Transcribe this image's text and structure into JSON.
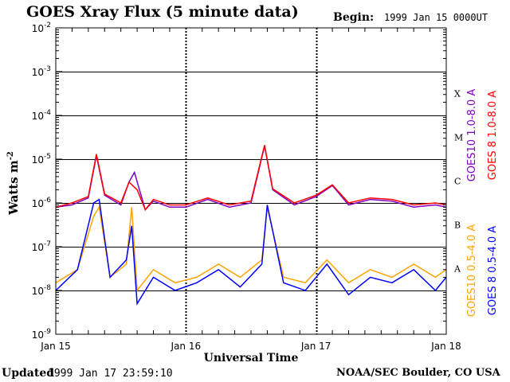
{
  "header": {
    "title": "GOES Xray Flux (5 minute data)",
    "begin_label": "Begin:",
    "begin_value": "1999 Jan 15 0000UT"
  },
  "footer": {
    "updated_label": "Updated",
    "updated_value": "1999 Jan 17 23:59:10",
    "credit": "NOAA/SEC Boulder, CO USA"
  },
  "colors": {
    "goes10_long": "#8000c0",
    "goes8_long": "#ff0000",
    "goes10_short": "#ffa500",
    "goes8_short": "#0000ff"
  },
  "chart_data": {
    "type": "line",
    "title": "GOES Xray Flux (5 minute data)",
    "xlabel": "Universal Time",
    "ylabel": "Watts m",
    "ylabel_superscript": "-2",
    "y_scale": "log",
    "ylim": [
      1e-09,
      0.01
    ],
    "y_ticks": [
      {
        "base": "10",
        "exp": "-2"
      },
      {
        "base": "10",
        "exp": "-3"
      },
      {
        "base": "10",
        "exp": "-4"
      },
      {
        "base": "10",
        "exp": "-5"
      },
      {
        "base": "10",
        "exp": "-6"
      },
      {
        "base": "10",
        "exp": "-7"
      },
      {
        "base": "10",
        "exp": "-8"
      },
      {
        "base": "10",
        "exp": "-9"
      }
    ],
    "x_range": [
      "1999-01-15T00:00",
      "1999-01-18T00:00"
    ],
    "x_ticks": [
      "Jan 15",
      "Jan 16",
      "Jan 17",
      "Jan 18"
    ],
    "flare_classes": [
      "X",
      "M",
      "C",
      "B",
      "A"
    ],
    "grid": {
      "horizontal_at": [
        1e-08,
        1e-07,
        1e-06,
        1e-05,
        0.0001,
        0.001
      ],
      "day_separators": true
    },
    "legend_placement": "right, vertical",
    "series": [
      {
        "name": "GOES10 1.0-8.0 A",
        "x": [
          "1999-01-15T00:00",
          "1999-01-15T03:00",
          "1999-01-15T06:00",
          "1999-01-15T07:30",
          "1999-01-15T09:00",
          "1999-01-15T12:00",
          "1999-01-15T13:30",
          "1999-01-15T14:30",
          "1999-01-15T16:30",
          "1999-01-15T18:00",
          "1999-01-15T21:00",
          "1999-01-16T00:00",
          "1999-01-16T04:00",
          "1999-01-16T08:00",
          "1999-01-16T12:00",
          "1999-01-16T14:30",
          "1999-01-16T16:00",
          "1999-01-16T20:00",
          "1999-01-17T00:00",
          "1999-01-17T03:00",
          "1999-01-17T06:00",
          "1999-01-17T10:00",
          "1999-01-17T14:00",
          "1999-01-17T18:00",
          "1999-01-17T22:00",
          "1999-01-18T00:00"
        ],
        "y": [
          8e-07,
          9e-07,
          1.3e-06,
          1.2e-05,
          1.5e-06,
          9e-07,
          3e-06,
          5e-06,
          7e-07,
          1.1e-06,
          8e-07,
          8e-07,
          1.2e-06,
          8e-07,
          1e-06,
          2e-05,
          2e-06,
          9e-07,
          1.4e-06,
          2.5e-06,
          9e-07,
          1.2e-06,
          1.1e-06,
          8e-07,
          9e-07,
          8e-07
        ]
      },
      {
        "name": "GOES 8 1.0-8.0 A",
        "x": [
          "1999-01-15T00:00",
          "1999-01-15T03:00",
          "1999-01-15T06:00",
          "1999-01-15T07:30",
          "1999-01-15T09:00",
          "1999-01-15T12:00",
          "1999-01-15T13:30",
          "1999-01-15T15:00",
          "1999-01-15T16:30",
          "1999-01-15T18:00",
          "1999-01-15T21:00",
          "1999-01-16T00:00",
          "1999-01-16T04:00",
          "1999-01-16T08:00",
          "1999-01-16T12:00",
          "1999-01-16T14:30",
          "1999-01-16T16:00",
          "1999-01-16T20:00",
          "1999-01-17T00:00",
          "1999-01-17T03:00",
          "1999-01-17T06:00",
          "1999-01-17T10:00",
          "1999-01-17T14:00",
          "1999-01-17T18:00",
          "1999-01-17T22:00",
          "1999-01-18T00:00"
        ],
        "y": [
          8e-07,
          1e-06,
          1.4e-06,
          1.3e-05,
          1.6e-06,
          1e-06,
          3e-06,
          2e-06,
          7e-07,
          1.2e-06,
          9e-07,
          9e-07,
          1.3e-06,
          9e-07,
          1.1e-06,
          2.1e-05,
          2.1e-06,
          1e-06,
          1.5e-06,
          2.6e-06,
          1e-06,
          1.3e-06,
          1.2e-06,
          9e-07,
          1e-06,
          9e-07
        ]
      },
      {
        "name": "GOES10 0.5-4.0 A",
        "x": [
          "1999-01-15T00:00",
          "1999-01-15T04:00",
          "1999-01-15T07:00",
          "1999-01-15T08:00",
          "1999-01-15T10:00",
          "1999-01-15T13:00",
          "1999-01-15T14:00",
          "1999-01-15T15:00",
          "1999-01-15T18:00",
          "1999-01-15T22:00",
          "1999-01-16T02:00",
          "1999-01-16T06:00",
          "1999-01-16T10:00",
          "1999-01-16T14:00",
          "1999-01-16T15:00",
          "1999-01-16T18:00",
          "1999-01-16T22:00",
          "1999-01-17T02:00",
          "1999-01-17T06:00",
          "1999-01-17T10:00",
          "1999-01-17T14:00",
          "1999-01-17T18:00",
          "1999-01-17T22:00",
          "1999-01-18T00:00"
        ],
        "y": [
          1.5e-08,
          3e-08,
          5e-07,
          8e-07,
          2e-08,
          4e-08,
          8e-07,
          1e-08,
          3e-08,
          1.5e-08,
          2e-08,
          4e-08,
          2e-08,
          5e-08,
          8e-07,
          2e-08,
          1.5e-08,
          5e-08,
          1.5e-08,
          3e-08,
          2e-08,
          4e-08,
          2e-08,
          3e-08
        ]
      },
      {
        "name": "GOES 8 0.5-4.0 A",
        "x": [
          "1999-01-15T00:00",
          "1999-01-15T04:00",
          "1999-01-15T07:00",
          "1999-01-15T08:00",
          "1999-01-15T10:00",
          "1999-01-15T13:00",
          "1999-01-15T14:00",
          "1999-01-15T15:00",
          "1999-01-15T18:00",
          "1999-01-15T22:00",
          "1999-01-16T02:00",
          "1999-01-16T06:00",
          "1999-01-16T10:00",
          "1999-01-16T14:00",
          "1999-01-16T15:00",
          "1999-01-16T18:00",
          "1999-01-16T22:00",
          "1999-01-17T02:00",
          "1999-01-17T06:00",
          "1999-01-17T10:00",
          "1999-01-17T14:00",
          "1999-01-17T18:00",
          "1999-01-17T22:00",
          "1999-01-18T00:00"
        ],
        "y": [
          1e-08,
          3e-08,
          1e-06,
          1.2e-06,
          2e-08,
          5e-08,
          3e-07,
          5e-09,
          2e-08,
          1e-08,
          1.5e-08,
          3e-08,
          1.2e-08,
          4e-08,
          9e-07,
          1.5e-08,
          1e-08,
          4e-08,
          8e-09,
          2e-08,
          1.5e-08,
          3e-08,
          1e-08,
          2e-08
        ]
      }
    ]
  }
}
